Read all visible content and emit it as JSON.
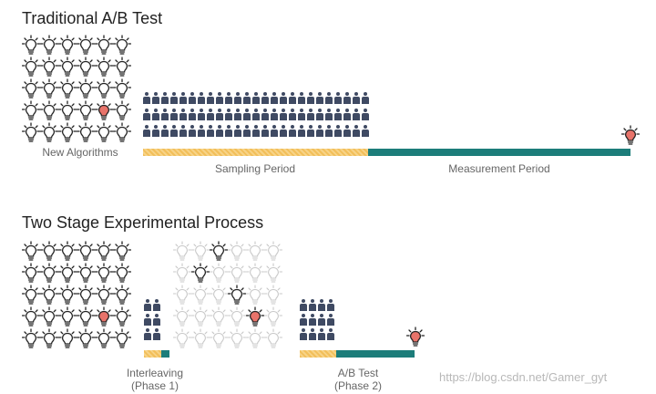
{
  "section1": {
    "title": "Traditional A/B Test",
    "new_algorithms_label": "New Algorithms",
    "sampling_label": "Sampling Period",
    "measurement_label": "Measurement Period"
  },
  "section2": {
    "title": "Two Stage Experimental Process",
    "interleaving_label_line1": "Interleaving",
    "interleaving_label_line2": "(Phase 1)",
    "abtest_label_line1": "A/B Test",
    "abtest_label_line2": "(Phase 2)"
  },
  "watermark": "https://blog.csdn.net/Gamer_gyt",
  "colors": {
    "bulb_dark": "#222222",
    "bulb_faded": "#c8c8c8",
    "bulb_winner": "#e8736a",
    "people": "#3f4a63",
    "sampling_bar": "#f2bf5a",
    "measurement_bar": "#1c7d7a"
  }
}
